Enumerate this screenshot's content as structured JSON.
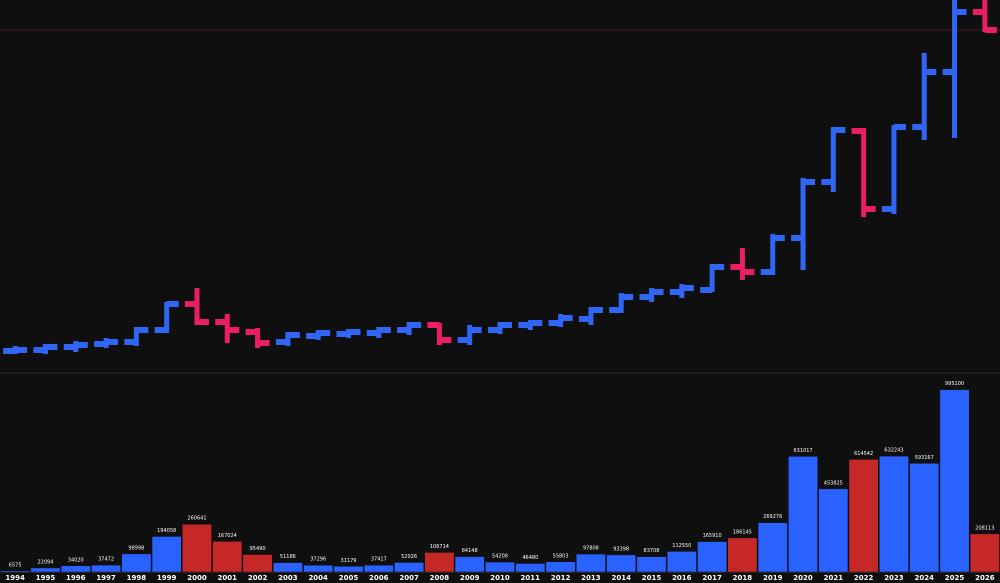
{
  "chart_data": {
    "type": "ohlc",
    "categories": [
      "1994",
      "1995",
      "1996",
      "1997",
      "1998",
      "1999",
      "2000",
      "2001",
      "2002",
      "2003",
      "2004",
      "2005",
      "2006",
      "2007",
      "2008",
      "2009",
      "2010",
      "2011",
      "2012",
      "2013",
      "2014",
      "2015",
      "2016",
      "2017",
      "2018",
      "2019",
      "2020",
      "2021",
      "2022",
      "2023",
      "2024",
      "2025",
      "2026"
    ],
    "open": [
      21,
      22,
      25,
      28,
      30,
      42,
      68,
      50,
      40,
      30,
      36,
      38,
      39,
      42,
      47,
      32,
      42,
      47,
      49,
      53,
      62,
      75,
      80,
      82,
      105,
      100,
      134,
      190,
      241,
      163,
      245,
      300,
      360
    ],
    "high": [
      26,
      28,
      31,
      34,
      45,
      70,
      84,
      58,
      44,
      40,
      42,
      43,
      45,
      50,
      49,
      47,
      50,
      52,
      58,
      65,
      79,
      84,
      88,
      108,
      124,
      138,
      194,
      245,
      244,
      247,
      319,
      372,
      372
    ],
    "low": [
      18,
      18,
      20,
      24,
      26,
      39,
      47,
      29,
      24,
      26,
      32,
      34,
      34,
      37,
      27,
      27,
      38,
      42,
      45,
      47,
      59,
      70,
      74,
      80,
      92,
      97,
      102,
      180,
      155,
      158,
      232,
      234,
      340
    ],
    "close": [
      22,
      25,
      27,
      30,
      42,
      68,
      50,
      42,
      29,
      37,
      39,
      40,
      42,
      47,
      32,
      42,
      47,
      49,
      54,
      62,
      75,
      80,
      84,
      105,
      100,
      134,
      190,
      242,
      163,
      245,
      300,
      360,
      342
    ],
    "up_color": "#2f66f6",
    "down_color": "#e91e63",
    "ylim": [
      0,
      372
    ],
    "volume": {
      "values": [
        6575,
        22094,
        34020,
        37472,
        98998,
        194058,
        260641,
        167024,
        95490,
        51186,
        37296,
        31179,
        37417,
        52026,
        106714,
        84148,
        54208,
        46480,
        55803,
        97808,
        93398,
        83708,
        112550,
        165910,
        186145,
        269276,
        631017,
        453825,
        614542,
        632243,
        593167,
        995100,
        208113
      ],
      "ylim": [
        0,
        1075000
      ],
      "up_color": "#2962ff",
      "down_color": "#c62828"
    }
  }
}
